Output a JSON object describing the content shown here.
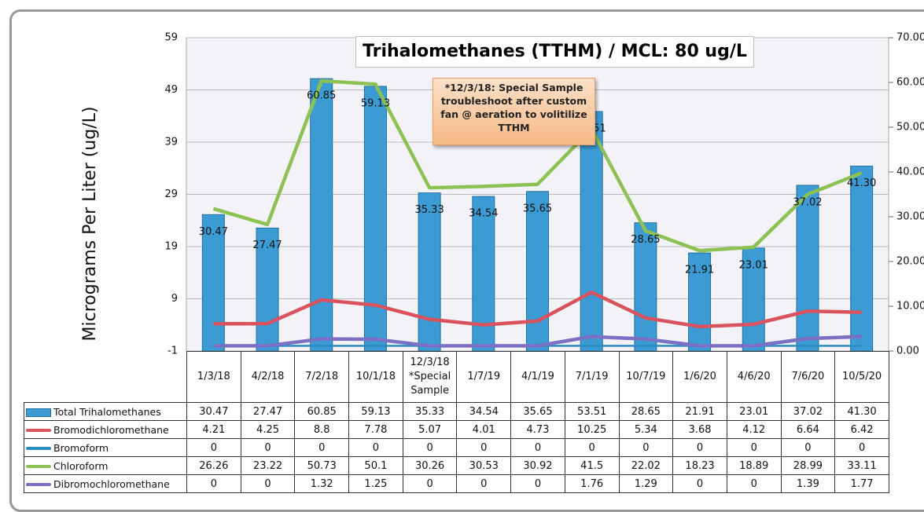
{
  "chart_data": {
    "type": "bar",
    "title": "Trihalomethanes (TTHM) / MCL: 80 ug/L",
    "y_label": "Micrograms Per Liter (ug/L)",
    "annotation": "*12/3/18: Special Sample troubleshoot after custom fan @ aeration to volitilize TTHM",
    "categories": [
      "1/3/18",
      "4/2/18",
      "7/2/18",
      "10/1/18",
      "12/3/18 *Special Sample",
      "1/7/19",
      "4/1/19",
      "7/1/19",
      "10/7/19",
      "1/6/20",
      "4/6/20",
      "7/6/20",
      "10/5/20"
    ],
    "ylim": [
      -1,
      59
    ],
    "yticks": [
      -1,
      9,
      19,
      29,
      39,
      49,
      59
    ],
    "y2lim": [
      0,
      70
    ],
    "y2ticks": [
      {
        "value": 0,
        "label": "0.00"
      },
      {
        "value": 10,
        "label": "10.00"
      },
      {
        "value": 20,
        "label": "20.00"
      },
      {
        "value": 30,
        "label": "30.00"
      },
      {
        "value": 40,
        "label": "40.00"
      },
      {
        "value": 50,
        "label": "50.00"
      },
      {
        "value": 60,
        "label": "60.00"
      },
      {
        "value": 70,
        "label": "70.00"
      }
    ],
    "grid": true,
    "series": [
      {
        "name": "Total Trihalomethanes",
        "type": "bar",
        "axis": "y2",
        "color": "#3c9bd2",
        "values": [
          30.47,
          27.47,
          60.85,
          59.13,
          35.33,
          34.54,
          35.65,
          53.51,
          28.65,
          21.91,
          23.01,
          37.02,
          41.3
        ],
        "value_labels": [
          "30.47",
          "27.47",
          "60.85",
          "59.13",
          "35.33",
          "34.54",
          "35.65",
          "53.51",
          "28.65",
          "21.91",
          "23.01",
          "37.02",
          "41.30"
        ]
      },
      {
        "name": "Bromodichloromethane",
        "type": "line",
        "color": "#d9525e",
        "values": [
          4.21,
          4.25,
          8.8,
          7.78,
          5.07,
          4.01,
          4.73,
          10.25,
          5.34,
          3.68,
          4.12,
          6.64,
          6.42
        ]
      },
      {
        "name": "Bromoform",
        "type": "line",
        "color": "#2a8cc2",
        "values": [
          0,
          0,
          0,
          0,
          0,
          0,
          0,
          0,
          0,
          0,
          0,
          0,
          0
        ]
      },
      {
        "name": "Chloroform",
        "type": "line",
        "color": "#8dc153",
        "values": [
          26.26,
          23.22,
          50.73,
          50.1,
          30.26,
          30.53,
          30.92,
          41.5,
          22.02,
          18.23,
          18.89,
          28.99,
          33.11
        ]
      },
      {
        "name": "Dibromochloromethane",
        "type": "line",
        "color": "#7b70c4",
        "values": [
          0,
          0,
          1.32,
          1.25,
          0,
          0,
          0,
          1.76,
          1.29,
          0,
          0,
          1.39,
          1.77
        ]
      }
    ]
  }
}
